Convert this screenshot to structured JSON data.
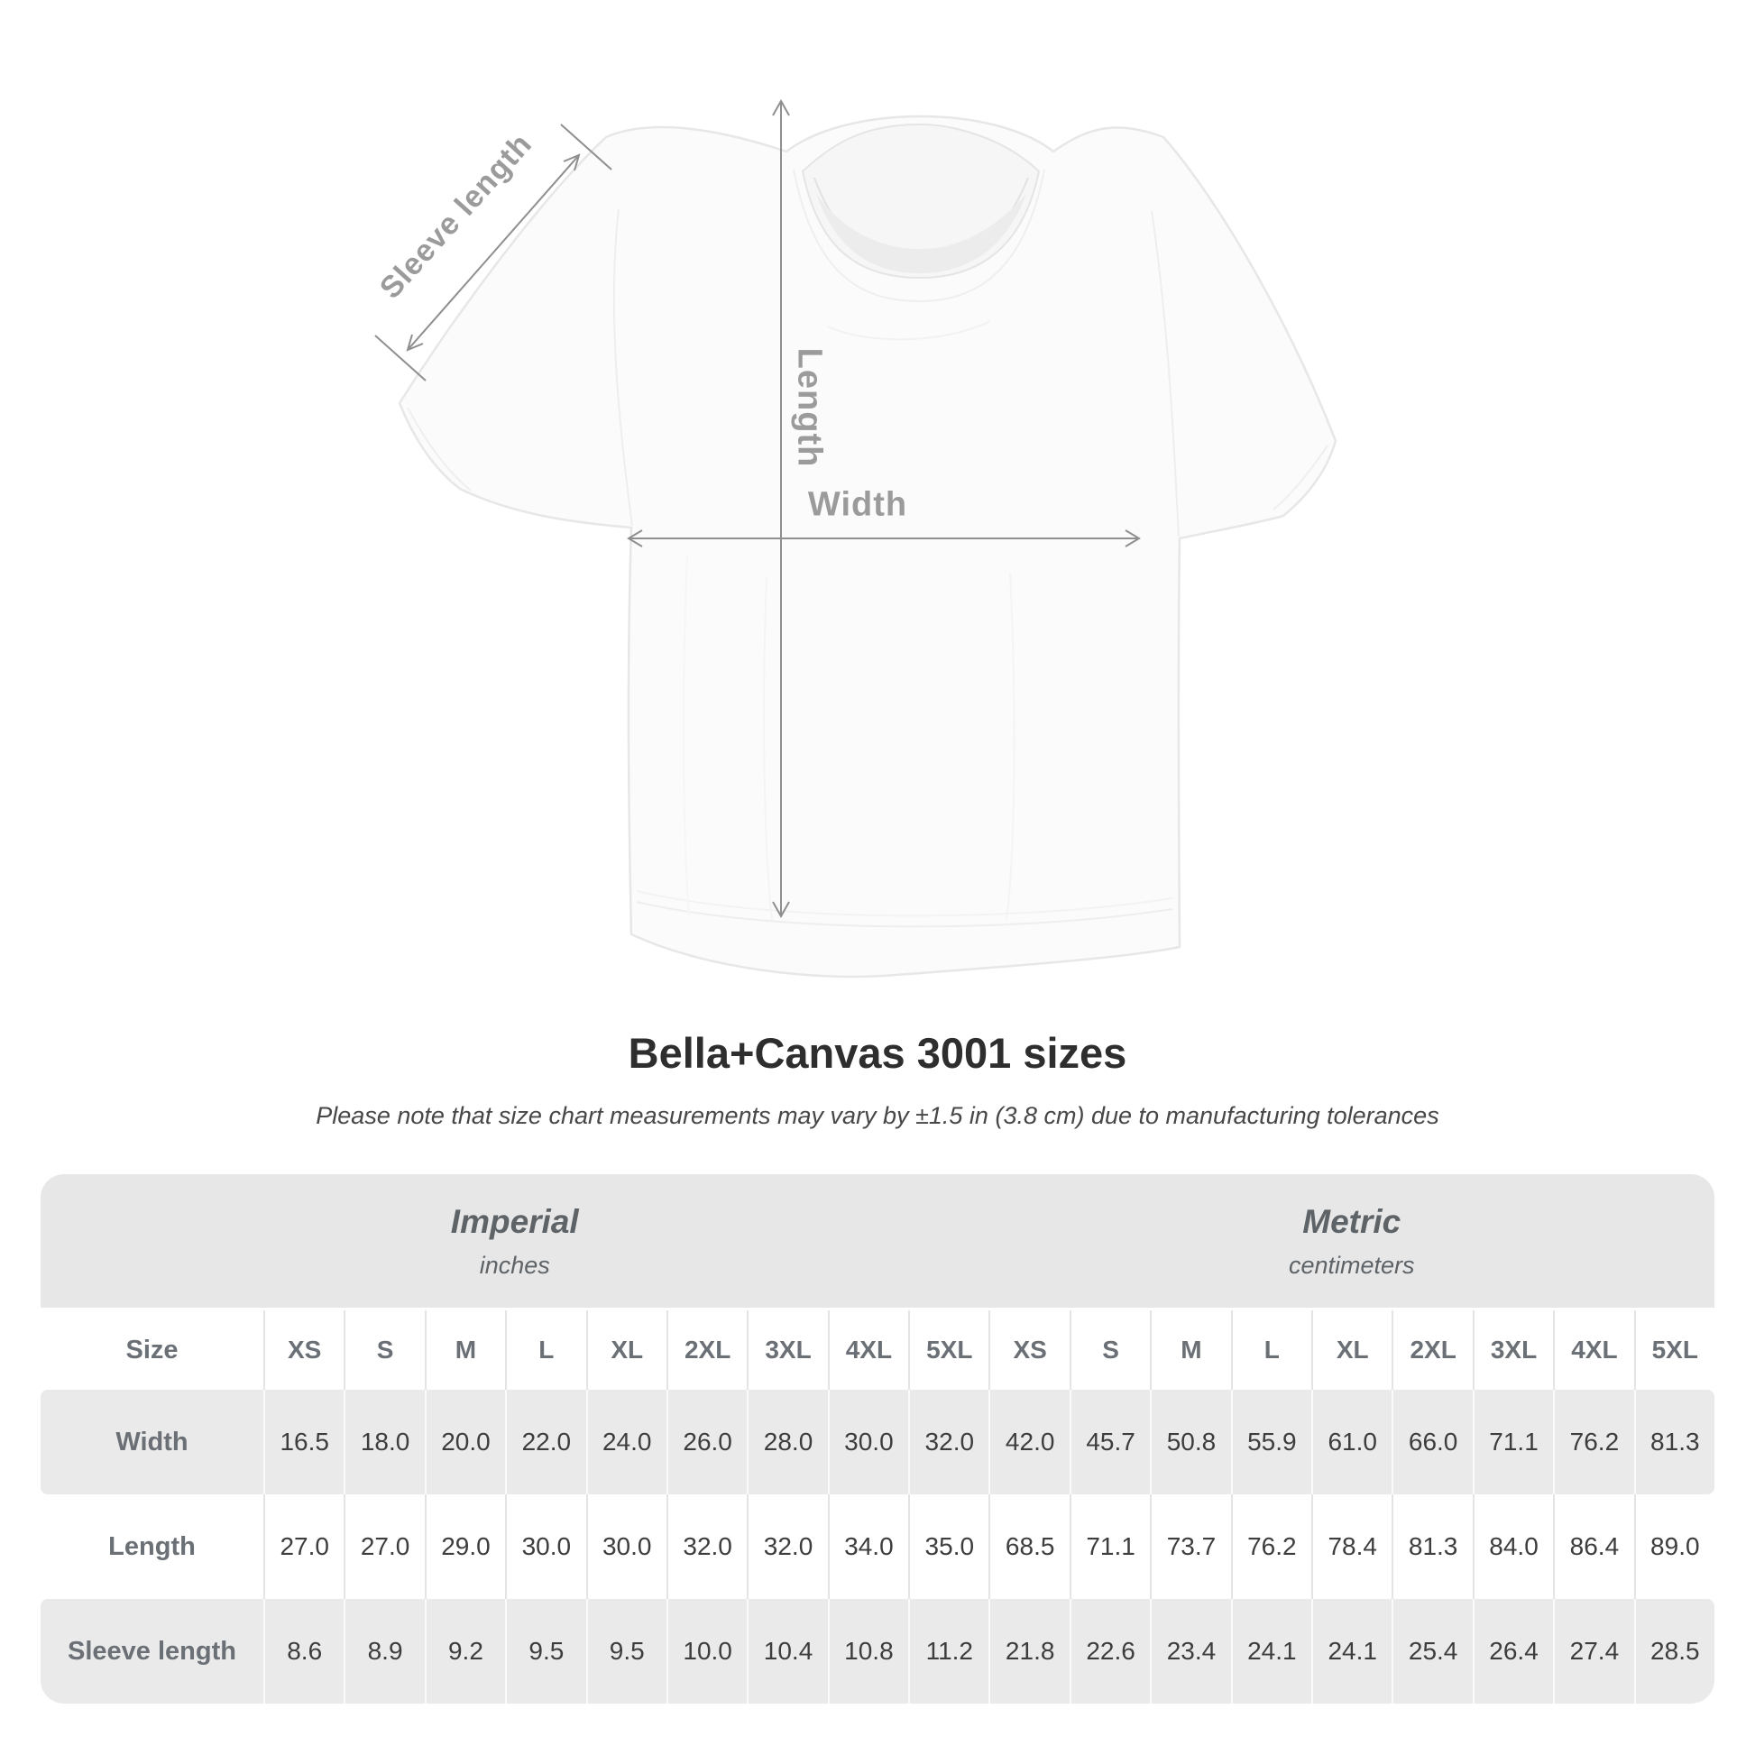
{
  "title": "Bella+Canvas 3001 sizes",
  "subtitle": "Please note that size chart measurements may vary by ±1.5 in (3.8 cm) due to manufacturing tolerances",
  "diagram": {
    "sleeve_length_label": "Sleeve length",
    "length_label": "Length",
    "width_label": "Width"
  },
  "table": {
    "size_header": "Size",
    "unit_groups": [
      {
        "label": "Imperial",
        "sublabel": "inches"
      },
      {
        "label": "Metric",
        "sublabel": "centimeters"
      }
    ],
    "sizes": [
      "XS",
      "S",
      "M",
      "L",
      "XL",
      "2XL",
      "3XL",
      "4XL",
      "5XL"
    ],
    "rows": [
      {
        "label": "Width",
        "imperial": [
          "16.5",
          "18.0",
          "20.0",
          "22.0",
          "24.0",
          "26.0",
          "28.0",
          "30.0",
          "32.0"
        ],
        "metric": [
          "42.0",
          "45.7",
          "50.8",
          "55.9",
          "61.0",
          "66.0",
          "71.1",
          "76.2",
          "81.3"
        ]
      },
      {
        "label": "Length",
        "imperial": [
          "27.0",
          "27.0",
          "29.0",
          "30.0",
          "30.0",
          "32.0",
          "32.0",
          "34.0",
          "35.0"
        ],
        "metric": [
          "68.5",
          "71.1",
          "73.7",
          "76.2",
          "78.4",
          "81.3",
          "84.0",
          "86.4",
          "89.0"
        ]
      },
      {
        "label": "Sleeve length",
        "imperial": [
          "8.6",
          "8.9",
          "9.2",
          "9.5",
          "9.5",
          "10.0",
          "10.4",
          "10.8",
          "11.2"
        ],
        "metric": [
          "21.8",
          "22.6",
          "23.4",
          "24.1",
          "24.1",
          "25.4",
          "26.4",
          "27.4",
          "28.5"
        ]
      }
    ]
  },
  "chart_data": {
    "type": "table",
    "title": "Bella+Canvas 3001 sizes",
    "columns": [
      "Size",
      "XS",
      "S",
      "M",
      "L",
      "XL",
      "2XL",
      "3XL",
      "4XL",
      "5XL"
    ],
    "units": {
      "imperial": "inches",
      "metric": "centimeters"
    },
    "rows_imperial": {
      "Width": [
        16.5,
        18.0,
        20.0,
        22.0,
        24.0,
        26.0,
        28.0,
        30.0,
        32.0
      ],
      "Length": [
        27.0,
        27.0,
        29.0,
        30.0,
        30.0,
        32.0,
        32.0,
        34.0,
        35.0
      ],
      "Sleeve length": [
        8.6,
        8.9,
        9.2,
        9.5,
        9.5,
        10.0,
        10.4,
        10.8,
        11.2
      ]
    },
    "rows_metric": {
      "Width": [
        42.0,
        45.7,
        50.8,
        55.9,
        61.0,
        66.0,
        71.1,
        76.2,
        81.3
      ],
      "Length": [
        68.5,
        71.1,
        73.7,
        76.2,
        78.4,
        81.3,
        84.0,
        86.4,
        89.0
      ],
      "Sleeve length": [
        21.8,
        22.6,
        23.4,
        24.1,
        24.1,
        25.4,
        26.4,
        27.4,
        28.5
      ]
    }
  },
  "colors": {
    "band-gray": "#e8e7e7",
    "row-gray": "#ebeaea",
    "label-gray": "#6a7075",
    "unit-gray": "#5d6367",
    "value-dark": "#3d3d3d",
    "title-dark": "#2e2e2e",
    "subtitle-gray": "#474747",
    "measure-gray": "#9b9b9b",
    "arrow-gray": "#8f8f8f",
    "divider-light": "#e4e4e4",
    "divider-on-gray": "#fafafa"
  }
}
